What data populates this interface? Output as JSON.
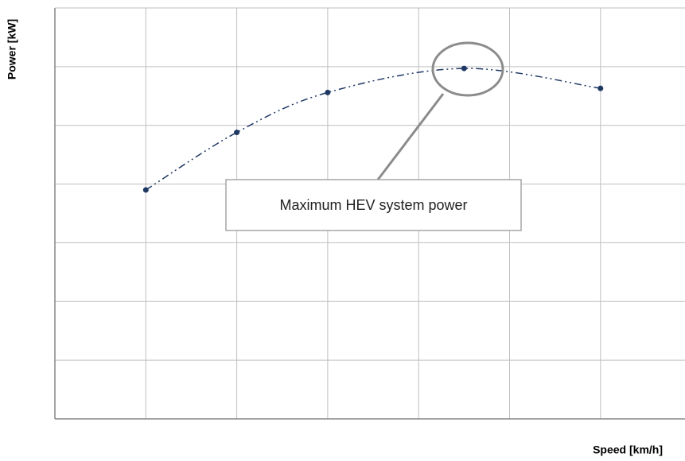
{
  "chart_data": {
    "type": "line",
    "xlabel": "Speed [km/h]",
    "ylabel": "Power [kW]",
    "annotation": "Maximum HEV system power",
    "x": [
      1,
      2,
      3,
      4.5,
      6
    ],
    "series": [
      {
        "color": "#1f3864",
        "values": [
          3.9,
          4.88,
          5.56,
          5.97,
          5.63
        ]
      }
    ],
    "xlim": [
      0,
      7
    ],
    "ylim": [
      0,
      7
    ],
    "xticks": [
      1,
      2,
      3,
      4,
      5,
      6
    ],
    "yticks": [
      1,
      2,
      3,
      4,
      5,
      6,
      7
    ],
    "grid": true
  }
}
